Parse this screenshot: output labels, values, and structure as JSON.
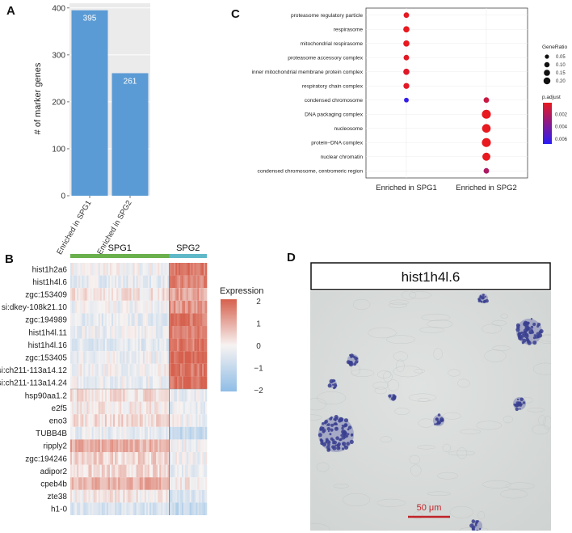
{
  "panels": {
    "a": {
      "letter": "A"
    },
    "b": {
      "letter": "B"
    },
    "c": {
      "letter": "C"
    },
    "d": {
      "letter": "D"
    }
  },
  "chart_data": [
    {
      "panel": "A",
      "type": "bar",
      "categories": [
        "Enriched in SPG1",
        "Enriched in SPG2"
      ],
      "values": [
        395,
        261
      ],
      "data_labels": [
        "395",
        "261"
      ],
      "xlabel": "",
      "ylabel": "# of marker genes",
      "ylim": [
        0,
        410
      ],
      "yticks": [
        0,
        100,
        200,
        300,
        400
      ],
      "grid": true,
      "bar_color": "#5b9bd5"
    },
    {
      "panel": "B",
      "type": "heatmap",
      "column_groups": [
        {
          "name": "SPG1",
          "fraction": 0.725,
          "color": "#6ab04c"
        },
        {
          "name": "SPG2",
          "fraction": 0.275,
          "color": "#5fb8c8"
        }
      ],
      "rows": [
        "hist1h2a6",
        "hist1h4l.6",
        "zgc:153409",
        "si:dkey-108k21.10",
        "zgc:194989",
        "hist1h4l.11",
        "hist1h4l.16",
        "zgc:153405",
        "si:ch211-113a14.12",
        "si:ch211-113a14.24",
        "hsp90aa1.2",
        "e2f5",
        "eno3",
        "TUBB4B",
        "ripply2",
        "zgc:194246",
        "adipor2",
        "cpeb4b",
        "zte38",
        "h1-0"
      ],
      "mean_expression": [
        [
          -0.1,
          1.6
        ],
        [
          -0.3,
          1.4
        ],
        [
          0.2,
          1.1
        ],
        [
          -0.2,
          1.3
        ],
        [
          -0.3,
          1.7
        ],
        [
          -0.2,
          1.5
        ],
        [
          -0.4,
          1.6
        ],
        [
          -0.2,
          1.9
        ],
        [
          -0.1,
          1.7
        ],
        [
          -0.2,
          1.8
        ],
        [
          0.3,
          -0.2
        ],
        [
          0.1,
          -0.3
        ],
        [
          0.3,
          -0.1
        ],
        [
          -0.3,
          -0.9
        ],
        [
          0.9,
          -0.2
        ],
        [
          0.4,
          -0.1
        ],
        [
          0.3,
          -0.2
        ],
        [
          0.9,
          0.1
        ],
        [
          0.1,
          -0.6
        ],
        [
          -0.6,
          -1.0
        ]
      ],
      "legend_title": "Expression",
      "legend_ticks": [
        "2",
        "1",
        "0",
        "−1",
        "−2"
      ],
      "legend_values": [
        2,
        1,
        0,
        -1,
        -2
      ],
      "scale_colors": {
        "low": "#8fbde6",
        "mid": "#f7f3f2",
        "high": "#d6604d"
      }
    },
    {
      "panel": "C",
      "type": "scatter",
      "subtype": "dotplot",
      "x_categories": [
        "Enriched in SPG1",
        "Enriched in SPG2"
      ],
      "y_categories": [
        "proteasome regulatory particle",
        "respirasome",
        "mitochondrial respirasome",
        "proteasome accessory complex",
        "inner mitochondrial membrane protein complex",
        "respiratory chain complex",
        "condensed chromosome",
        "DNA packaging complex",
        "nucleosome",
        "protein–DNA complex",
        "nuclear chromatin",
        "condensed chromosome, centromeric region"
      ],
      "points": [
        {
          "x": "Enriched in SPG1",
          "y": "proteasome regulatory particle",
          "gene_ratio": 0.05,
          "p_adjust": 0.0002
        },
        {
          "x": "Enriched in SPG1",
          "y": "respirasome",
          "gene_ratio": 0.07,
          "p_adjust": 0.0001
        },
        {
          "x": "Enriched in SPG1",
          "y": "mitochondrial respirasome",
          "gene_ratio": 0.07,
          "p_adjust": 0.0001
        },
        {
          "x": "Enriched in SPG1",
          "y": "proteasome accessory complex",
          "gene_ratio": 0.05,
          "p_adjust": 0.0003
        },
        {
          "x": "Enriched in SPG1",
          "y": "inner mitochondrial membrane protein complex",
          "gene_ratio": 0.07,
          "p_adjust": 0.0004
        },
        {
          "x": "Enriched in SPG1",
          "y": "respiratory chain complex",
          "gene_ratio": 0.06,
          "p_adjust": 0.0003
        },
        {
          "x": "Enriched in SPG1",
          "y": "condensed chromosome",
          "gene_ratio": 0.03,
          "p_adjust": 0.0065
        },
        {
          "x": "Enriched in SPG2",
          "y": "condensed chromosome",
          "gene_ratio": 0.05,
          "p_adjust": 0.0012
        },
        {
          "x": "Enriched in SPG2",
          "y": "DNA packaging complex",
          "gene_ratio": 0.19,
          "p_adjust": 0.0001
        },
        {
          "x": "Enriched in SPG2",
          "y": "nucleosome",
          "gene_ratio": 0.17,
          "p_adjust": 0.0001
        },
        {
          "x": "Enriched in SPG2",
          "y": "protein–DNA complex",
          "gene_ratio": 0.19,
          "p_adjust": 0.0001
        },
        {
          "x": "Enriched in SPG2",
          "y": "nuclear chromatin",
          "gene_ratio": 0.14,
          "p_adjust": 0.0001
        },
        {
          "x": "Enriched in SPG2",
          "y": "condensed chromosome, centromeric region",
          "gene_ratio": 0.05,
          "p_adjust": 0.0022
        }
      ],
      "size_legend": {
        "title": "GeneRatio",
        "values": [
          0.05,
          0.1,
          0.15,
          0.2
        ],
        "labels": [
          "0.05",
          "0.10",
          "0.15",
          "0.20"
        ]
      },
      "color_legend": {
        "title": "p.adjust",
        "ticks": [
          0.002,
          0.004,
          0.006
        ],
        "labels": [
          "0.002",
          "0.004",
          "0.006"
        ],
        "range": [
          0.0001,
          0.0068
        ],
        "low_color": "#e8191f",
        "high_color": "#2a1cf5"
      },
      "grid": true
    }
  ],
  "image_d": {
    "title": "hist1h4l.6",
    "scale_bar_label": "50 μm",
    "background_color": "#d6d9d7",
    "stain_color": "#3a3f8f",
    "scale_bar_color": "#c0242a"
  }
}
